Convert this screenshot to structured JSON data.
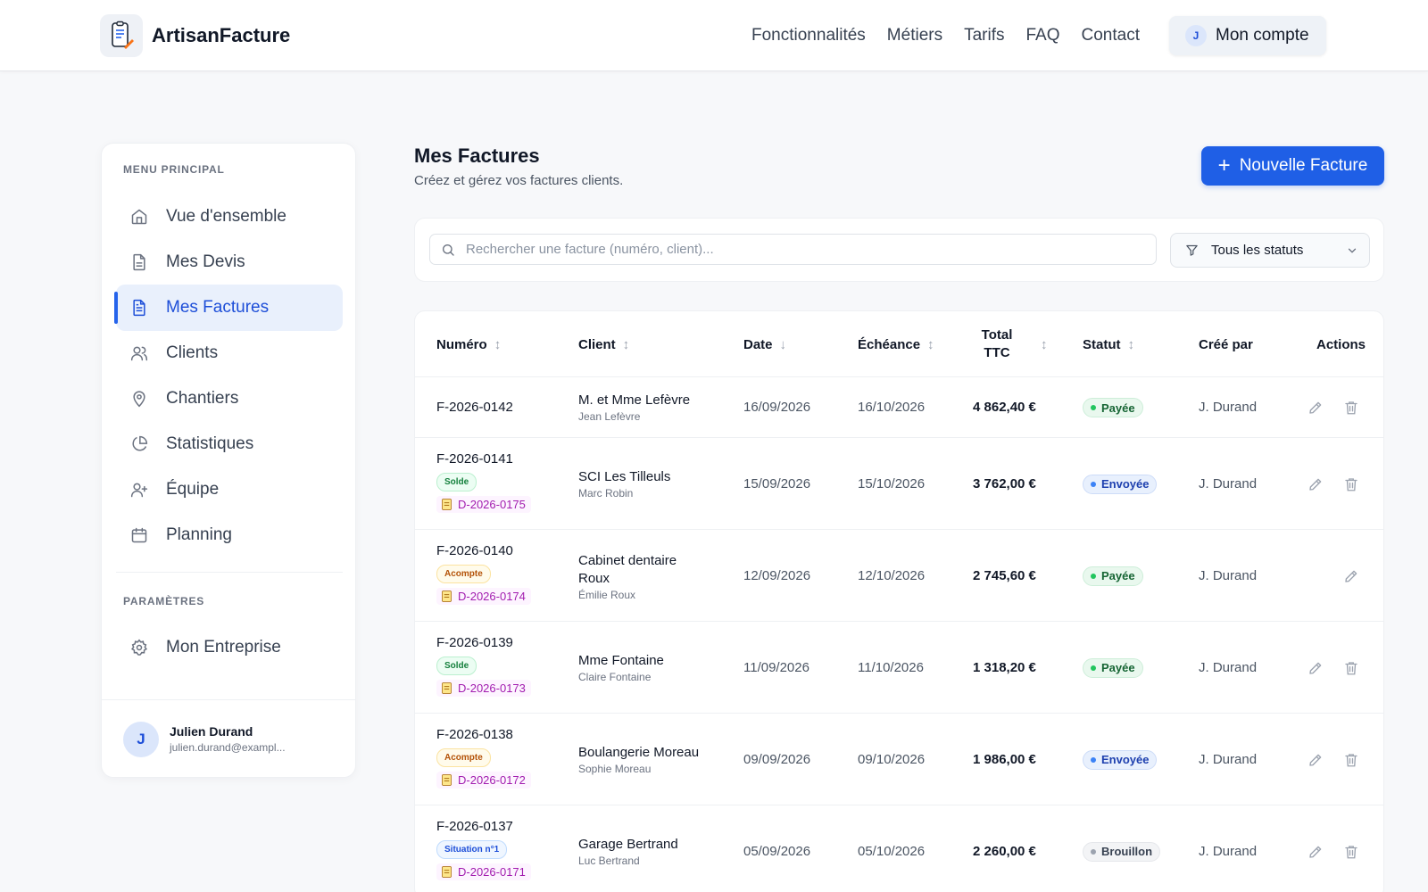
{
  "header": {
    "brand": "ArtisanFacture",
    "nav": [
      "Fonctionnalités",
      "Métiers",
      "Tarifs",
      "FAQ",
      "Contact"
    ],
    "account": {
      "initial": "J",
      "label": "Mon compte"
    }
  },
  "sidebar": {
    "main_title": "MENU PRINCIPAL",
    "items": [
      {
        "label": "Vue d'ensemble",
        "icon": "home-icon"
      },
      {
        "label": "Mes Devis",
        "icon": "document-icon"
      },
      {
        "label": "Mes Factures",
        "icon": "invoice-icon",
        "active": true
      },
      {
        "label": "Clients",
        "icon": "users-icon"
      },
      {
        "label": "Chantiers",
        "icon": "map-pin-icon"
      },
      {
        "label": "Statistiques",
        "icon": "pie-chart-icon"
      },
      {
        "label": "Équipe",
        "icon": "user-plus-icon"
      },
      {
        "label": "Planning",
        "icon": "calendar-icon"
      }
    ],
    "settings_title": "PARAMÈTRES",
    "settings_items": [
      {
        "label": "Mon Entreprise",
        "icon": "gear-icon"
      }
    ],
    "user": {
      "initial": "J",
      "name": "Julien Durand",
      "email": "julien.durand@exampl..."
    }
  },
  "main": {
    "title": "Mes Factures",
    "subtitle": "Créez et gérez vos factures clients.",
    "new_button": "Nouvelle Facture",
    "search_placeholder": "Rechercher une facture (numéro, client)...",
    "status_filter": "Tous les statuts"
  },
  "table": {
    "columns": {
      "numero": "Numéro",
      "client": "Client",
      "date": "Date",
      "echeance": "Échéance",
      "total": "Total TTC",
      "statut": "Statut",
      "cree_par": "Créé par",
      "actions": "Actions"
    },
    "rows": [
      {
        "numero": "F-2026-0142",
        "client": "M. et Mme Lefèvre",
        "contact": "Jean Lefèvre",
        "date": "16/09/2026",
        "echeance": "16/10/2026",
        "total": "4 862,40 €",
        "statut": "Payée",
        "status_kind": "payee",
        "cree_par": "J. Durand",
        "can_delete": true
      },
      {
        "numero": "F-2026-0141",
        "type": "Solde",
        "type_kind": "solde",
        "devis": "D-2026-0175",
        "client": "SCI Les Tilleuls",
        "contact": "Marc Robin",
        "date": "15/09/2026",
        "echeance": "15/10/2026",
        "total": "3 762,00 €",
        "statut": "Envoyée",
        "status_kind": "envoyee",
        "cree_par": "J. Durand",
        "can_delete": true
      },
      {
        "numero": "F-2026-0140",
        "type": "Acompte",
        "type_kind": "acompte",
        "devis": "D-2026-0174",
        "client": "Cabinet dentaire Roux",
        "contact": "Émilie Roux",
        "date": "12/09/2026",
        "echeance": "12/10/2026",
        "total": "2 745,60 €",
        "statut": "Payée",
        "status_kind": "payee",
        "cree_par": "J. Durand",
        "can_delete": false
      },
      {
        "numero": "F-2026-0139",
        "type": "Solde",
        "type_kind": "solde",
        "devis": "D-2026-0173",
        "client": "Mme Fontaine",
        "contact": "Claire Fontaine",
        "date": "11/09/2026",
        "echeance": "11/10/2026",
        "total": "1 318,20 €",
        "statut": "Payée",
        "status_kind": "payee",
        "cree_par": "J. Durand",
        "can_delete": true
      },
      {
        "numero": "F-2026-0138",
        "type": "Acompte",
        "type_kind": "acompte",
        "devis": "D-2026-0172",
        "client": "Boulangerie Moreau",
        "contact": "Sophie Moreau",
        "date": "09/09/2026",
        "echeance": "09/10/2026",
        "total": "1 986,00 €",
        "statut": "Envoyée",
        "status_kind": "envoyee",
        "cree_par": "J. Durand",
        "can_delete": true
      },
      {
        "numero": "F-2026-0137",
        "type": "Situation n°1",
        "type_kind": "situation",
        "devis": "D-2026-0171",
        "client": "Garage Bertrand",
        "contact": "Luc Bertrand",
        "date": "05/09/2026",
        "echeance": "05/10/2026",
        "total": "2 260,00 €",
        "statut": "Brouillon",
        "status_kind": "brouillon",
        "cree_par": "J. Durand",
        "can_delete": true
      }
    ]
  },
  "colors": {
    "accent": "#1f5fe6",
    "active_bg": "#e9f0fc",
    "payee": "#22c55e",
    "envoyee": "#3b82f6",
    "brouillon": "#9ca3af"
  }
}
